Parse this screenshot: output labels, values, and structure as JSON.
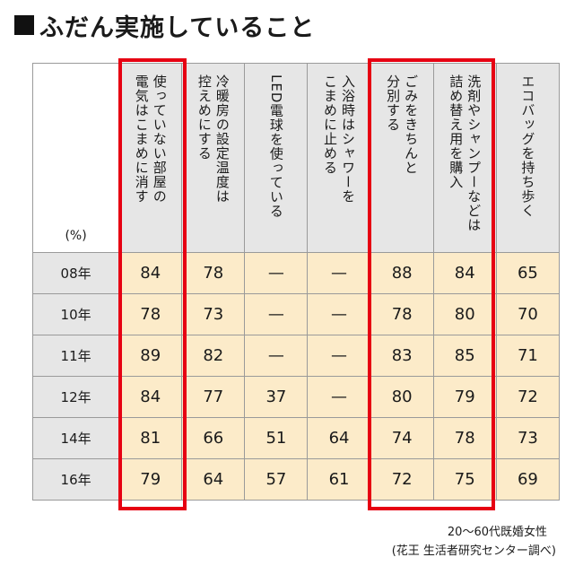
{
  "title": "ふだん実施していること",
  "chart_data": {
    "type": "table",
    "unit": "(%)",
    "columns": [
      [
        "使っていない部屋の",
        "電気はこまめに消す"
      ],
      [
        "冷暖房の設定温度は",
        "控えめにする"
      ],
      [
        "LED電球を使っている"
      ],
      [
        "入浴時はシャワーを",
        "こまめに止める"
      ],
      [
        "ごみをきちんと",
        "分別する"
      ],
      [
        "洗剤やシャンプーなどは",
        "詰め替え用を購入"
      ],
      [
        "エコバッグを持ち歩く"
      ]
    ],
    "rows": [
      {
        "year": "08年",
        "values": [
          "84",
          "78",
          "—",
          "—",
          "88",
          "84",
          "65"
        ]
      },
      {
        "year": "10年",
        "values": [
          "78",
          "73",
          "—",
          "—",
          "78",
          "80",
          "70"
        ]
      },
      {
        "year": "11年",
        "values": [
          "89",
          "82",
          "—",
          "—",
          "83",
          "85",
          "71"
        ]
      },
      {
        "year": "12年",
        "values": [
          "84",
          "77",
          "37",
          "—",
          "80",
          "79",
          "72"
        ]
      },
      {
        "year": "14年",
        "values": [
          "81",
          "66",
          "51",
          "64",
          "74",
          "78",
          "73"
        ]
      },
      {
        "year": "16年",
        "values": [
          "79",
          "64",
          "57",
          "61",
          "72",
          "75",
          "69"
        ]
      }
    ],
    "highlighted_columns": [
      1,
      5,
      6
    ],
    "highlight_color": "#e60012"
  },
  "note": {
    "line1": "20〜60代既婚女性",
    "line2": "(花王 生活者研究センター調べ)"
  }
}
